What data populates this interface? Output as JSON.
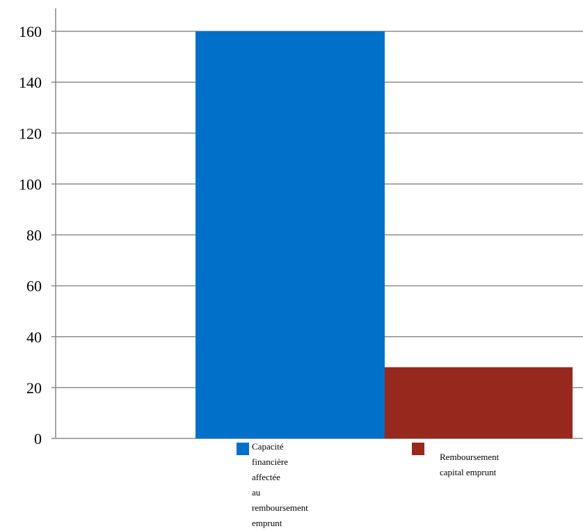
{
  "chart_data": {
    "type": "bar",
    "categories": [
      "Capacité financière affectée\nau remboursement emprunt",
      "Remboursement\ncapital emprunt"
    ],
    "values": [
      160,
      28
    ],
    "colors": [
      "#0070C8",
      "#96281E"
    ],
    "title": "",
    "xlabel": "",
    "ylabel": "",
    "ylim": [
      0,
      160
    ],
    "yticks": [
      "0",
      "20",
      "40",
      "60",
      "80",
      "100",
      "120",
      "140",
      "160"
    ],
    "grid": true,
    "legend": {
      "position": "bottom",
      "entries": [
        "Capacité financière affectée\nau remboursement emprunt",
        "Remboursement\ncapital emprunt"
      ]
    }
  }
}
